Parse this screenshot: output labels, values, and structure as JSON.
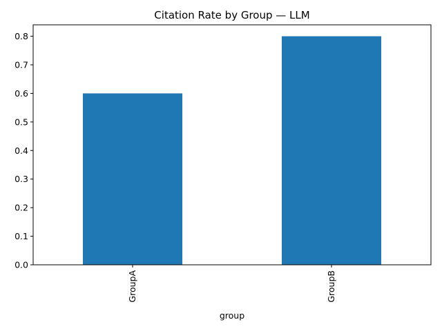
{
  "chart_data": {
    "type": "bar",
    "title": "Citation Rate by Group — LLM",
    "xlabel": "group",
    "ylabel": "",
    "categories": [
      "GroupA",
      "GroupB"
    ],
    "values": [
      0.6,
      0.8
    ],
    "ylim": [
      0,
      0.84
    ],
    "yticks": [
      0.0,
      0.1,
      0.2,
      0.3,
      0.4,
      0.5,
      0.6,
      0.7,
      0.8
    ],
    "ytick_labels": [
      "0.0",
      "0.1",
      "0.2",
      "0.3",
      "0.4",
      "0.5",
      "0.6",
      "0.7",
      "0.8"
    ],
    "x_tick_rotation": 90,
    "grid": false,
    "legend": "none",
    "bar_color": "#1f77b4"
  }
}
